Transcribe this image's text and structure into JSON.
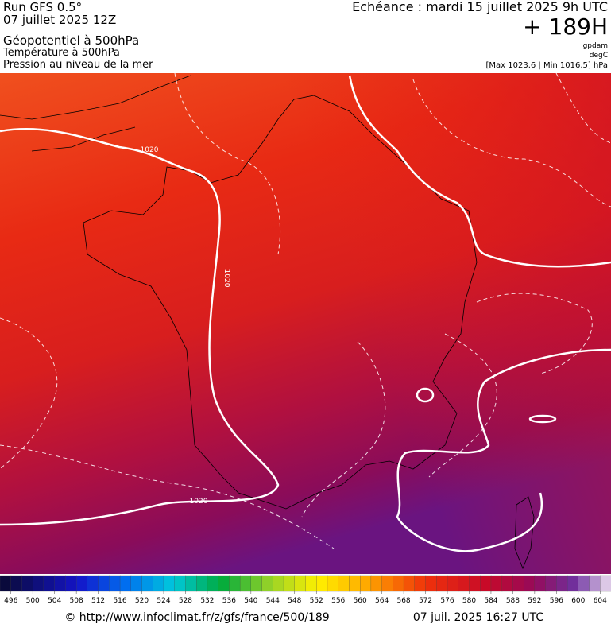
{
  "header": {
    "run": "Run GFS 0.5°",
    "run_date": "07 juillet 2025 12Z",
    "field1": "Géopotentiel à 500hPa",
    "field2": "Température à 500hPa",
    "field3": "Pression au niveau de la mer",
    "valid": "Echéance : mardi 15 juillet 2025 9h UTC",
    "lead": "+ 189H",
    "unit1": "gpdam",
    "unit2": "degC",
    "range": "[Max 1023.6 | Min 1016.5] hPa"
  },
  "map": {
    "contour_labels": [
      "1020",
      "1020",
      "1020"
    ]
  },
  "colorbar": {
    "ticks": [
      496,
      500,
      504,
      508,
      512,
      516,
      520,
      524,
      528,
      532,
      536,
      540,
      544,
      548,
      552,
      556,
      560,
      564,
      568,
      572,
      576,
      580,
      584,
      588,
      592,
      596,
      600,
      604
    ]
  },
  "footer": {
    "url": "© http://www.infoclimat.fr/z/gfs/france/500/189",
    "generated": "07 juil. 2025 16:27 UTC"
  }
}
